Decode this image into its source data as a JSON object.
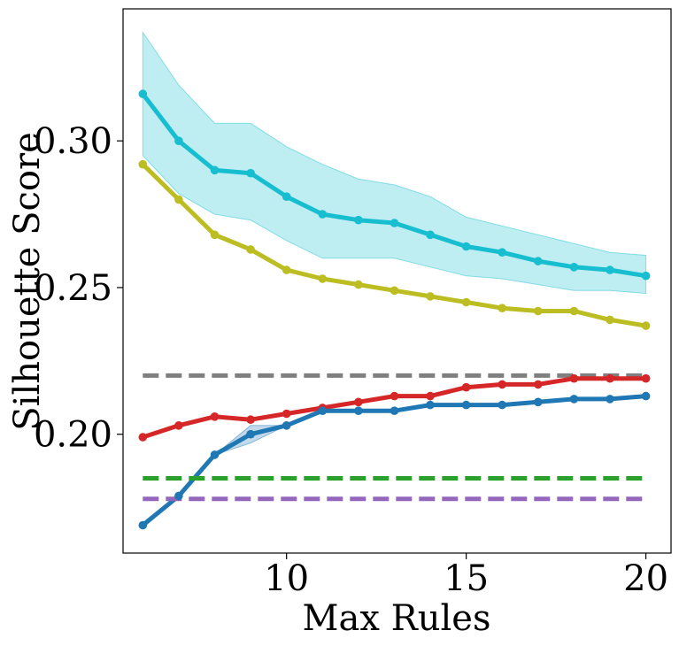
{
  "chart_data": {
    "type": "line",
    "title": "",
    "xlabel": "Max Rules",
    "ylabel": "Silhouette Score",
    "xlim": [
      5.45,
      20.7
    ],
    "ylim": [
      0.1595,
      0.345
    ],
    "xticks": [
      10,
      15,
      20
    ],
    "yticks": [
      0.2,
      0.25,
      0.3
    ],
    "ytick_labels": [
      "0.20",
      "0.25",
      "0.30"
    ],
    "grid": false,
    "legend": "none",
    "x": [
      6,
      7,
      8,
      9,
      10,
      11,
      12,
      13,
      14,
      15,
      16,
      17,
      18,
      19,
      20
    ],
    "series": [
      {
        "color": "#17becf",
        "style": "solid-markers",
        "values": [
          0.316,
          0.3,
          0.29,
          0.289,
          0.281,
          0.275,
          0.273,
          0.272,
          0.268,
          0.264,
          0.262,
          0.259,
          0.257,
          0.256,
          0.254
        ],
        "band_lower": [
          0.295,
          0.282,
          0.275,
          0.273,
          0.266,
          0.26,
          0.26,
          0.26,
          0.257,
          0.254,
          0.253,
          0.251,
          0.249,
          0.249,
          0.248
        ],
        "band_upper": [
          0.337,
          0.319,
          0.306,
          0.306,
          0.298,
          0.292,
          0.287,
          0.285,
          0.281,
          0.274,
          0.271,
          0.268,
          0.265,
          0.262,
          0.261
        ]
      },
      {
        "color": "#bcbd22",
        "style": "solid-markers",
        "values": [
          0.292,
          0.28,
          0.268,
          0.263,
          0.256,
          0.253,
          0.251,
          0.249,
          0.247,
          0.245,
          0.243,
          0.242,
          0.242,
          0.239,
          0.237
        ]
      },
      {
        "color": "#7f7f7f",
        "style": "dashed",
        "values": [
          0.22,
          0.22,
          0.22,
          0.22,
          0.22,
          0.22,
          0.22,
          0.22,
          0.22,
          0.22,
          0.22,
          0.22,
          0.22,
          0.22,
          0.22
        ]
      },
      {
        "color": "#d62728",
        "style": "solid-markers",
        "values": [
          0.199,
          0.203,
          0.206,
          0.205,
          0.207,
          0.209,
          0.211,
          0.213,
          0.213,
          0.216,
          0.217,
          0.217,
          0.219,
          0.219,
          0.219
        ]
      },
      {
        "color": "#1f77b4",
        "style": "solid-markers",
        "values": [
          0.169,
          0.179,
          0.193,
          0.2,
          0.203,
          0.208,
          0.208,
          0.208,
          0.21,
          0.21,
          0.21,
          0.211,
          0.212,
          0.212,
          0.213
        ],
        "band_lower": [
          0.169,
          0.179,
          0.193,
          0.197,
          0.203,
          0.208,
          0.208,
          0.208,
          0.21,
          0.21,
          0.21,
          0.211,
          0.212,
          0.212,
          0.213
        ],
        "band_upper": [
          0.169,
          0.179,
          0.193,
          0.203,
          0.203,
          0.208,
          0.208,
          0.208,
          0.21,
          0.21,
          0.21,
          0.211,
          0.212,
          0.212,
          0.213
        ]
      },
      {
        "color": "#2ca02c",
        "style": "dashed",
        "values": [
          0.185,
          0.185,
          0.185,
          0.185,
          0.185,
          0.185,
          0.185,
          0.185,
          0.185,
          0.185,
          0.185,
          0.185,
          0.185,
          0.185,
          0.185
        ]
      },
      {
        "color": "#9467bd",
        "style": "dashed",
        "values": [
          0.178,
          0.178,
          0.178,
          0.178,
          0.178,
          0.178,
          0.178,
          0.178,
          0.178,
          0.178,
          0.178,
          0.178,
          0.178,
          0.178,
          0.178
        ]
      }
    ]
  }
}
